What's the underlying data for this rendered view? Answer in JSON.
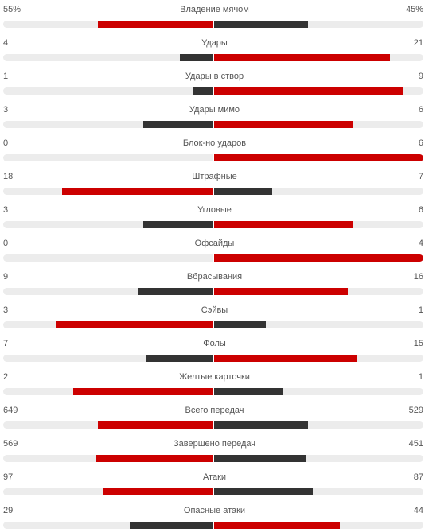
{
  "colors": {
    "leader": "#cc0000",
    "trailer": "#333333",
    "track": "#ececec"
  },
  "chart_data": {
    "type": "bar",
    "orientation": "horizontal-diverging",
    "categories": [
      "Владение мячом",
      "Удары",
      "Удары в створ",
      "Удары мимо",
      "Блок-но ударов",
      "Штрафные",
      "Угловые",
      "Офсайды",
      "Вбрасывания",
      "Сэйвы",
      "Фолы",
      "Желтые карточки",
      "Всего передач",
      "Завершено передач",
      "Атаки",
      "Опасные атаки"
    ],
    "series": [
      {
        "values": [
          55,
          4,
          1,
          3,
          0,
          18,
          3,
          0,
          9,
          3,
          7,
          2,
          649,
          569,
          97,
          29
        ]
      },
      {
        "values": [
          45,
          21,
          9,
          6,
          6,
          7,
          6,
          4,
          16,
          1,
          15,
          1,
          529,
          451,
          87,
          44
        ]
      }
    ],
    "display": {
      "home": [
        "55%",
        "4",
        "1",
        "3",
        "0",
        "18",
        "3",
        "0",
        "9",
        "3",
        "7",
        "2",
        "649",
        "569",
        "97",
        "29"
      ],
      "away": [
        "45%",
        "21",
        "9",
        "6",
        "6",
        "7",
        "6",
        "4",
        "16",
        "1",
        "15",
        "1",
        "529",
        "451",
        "87",
        "44"
      ]
    }
  }
}
